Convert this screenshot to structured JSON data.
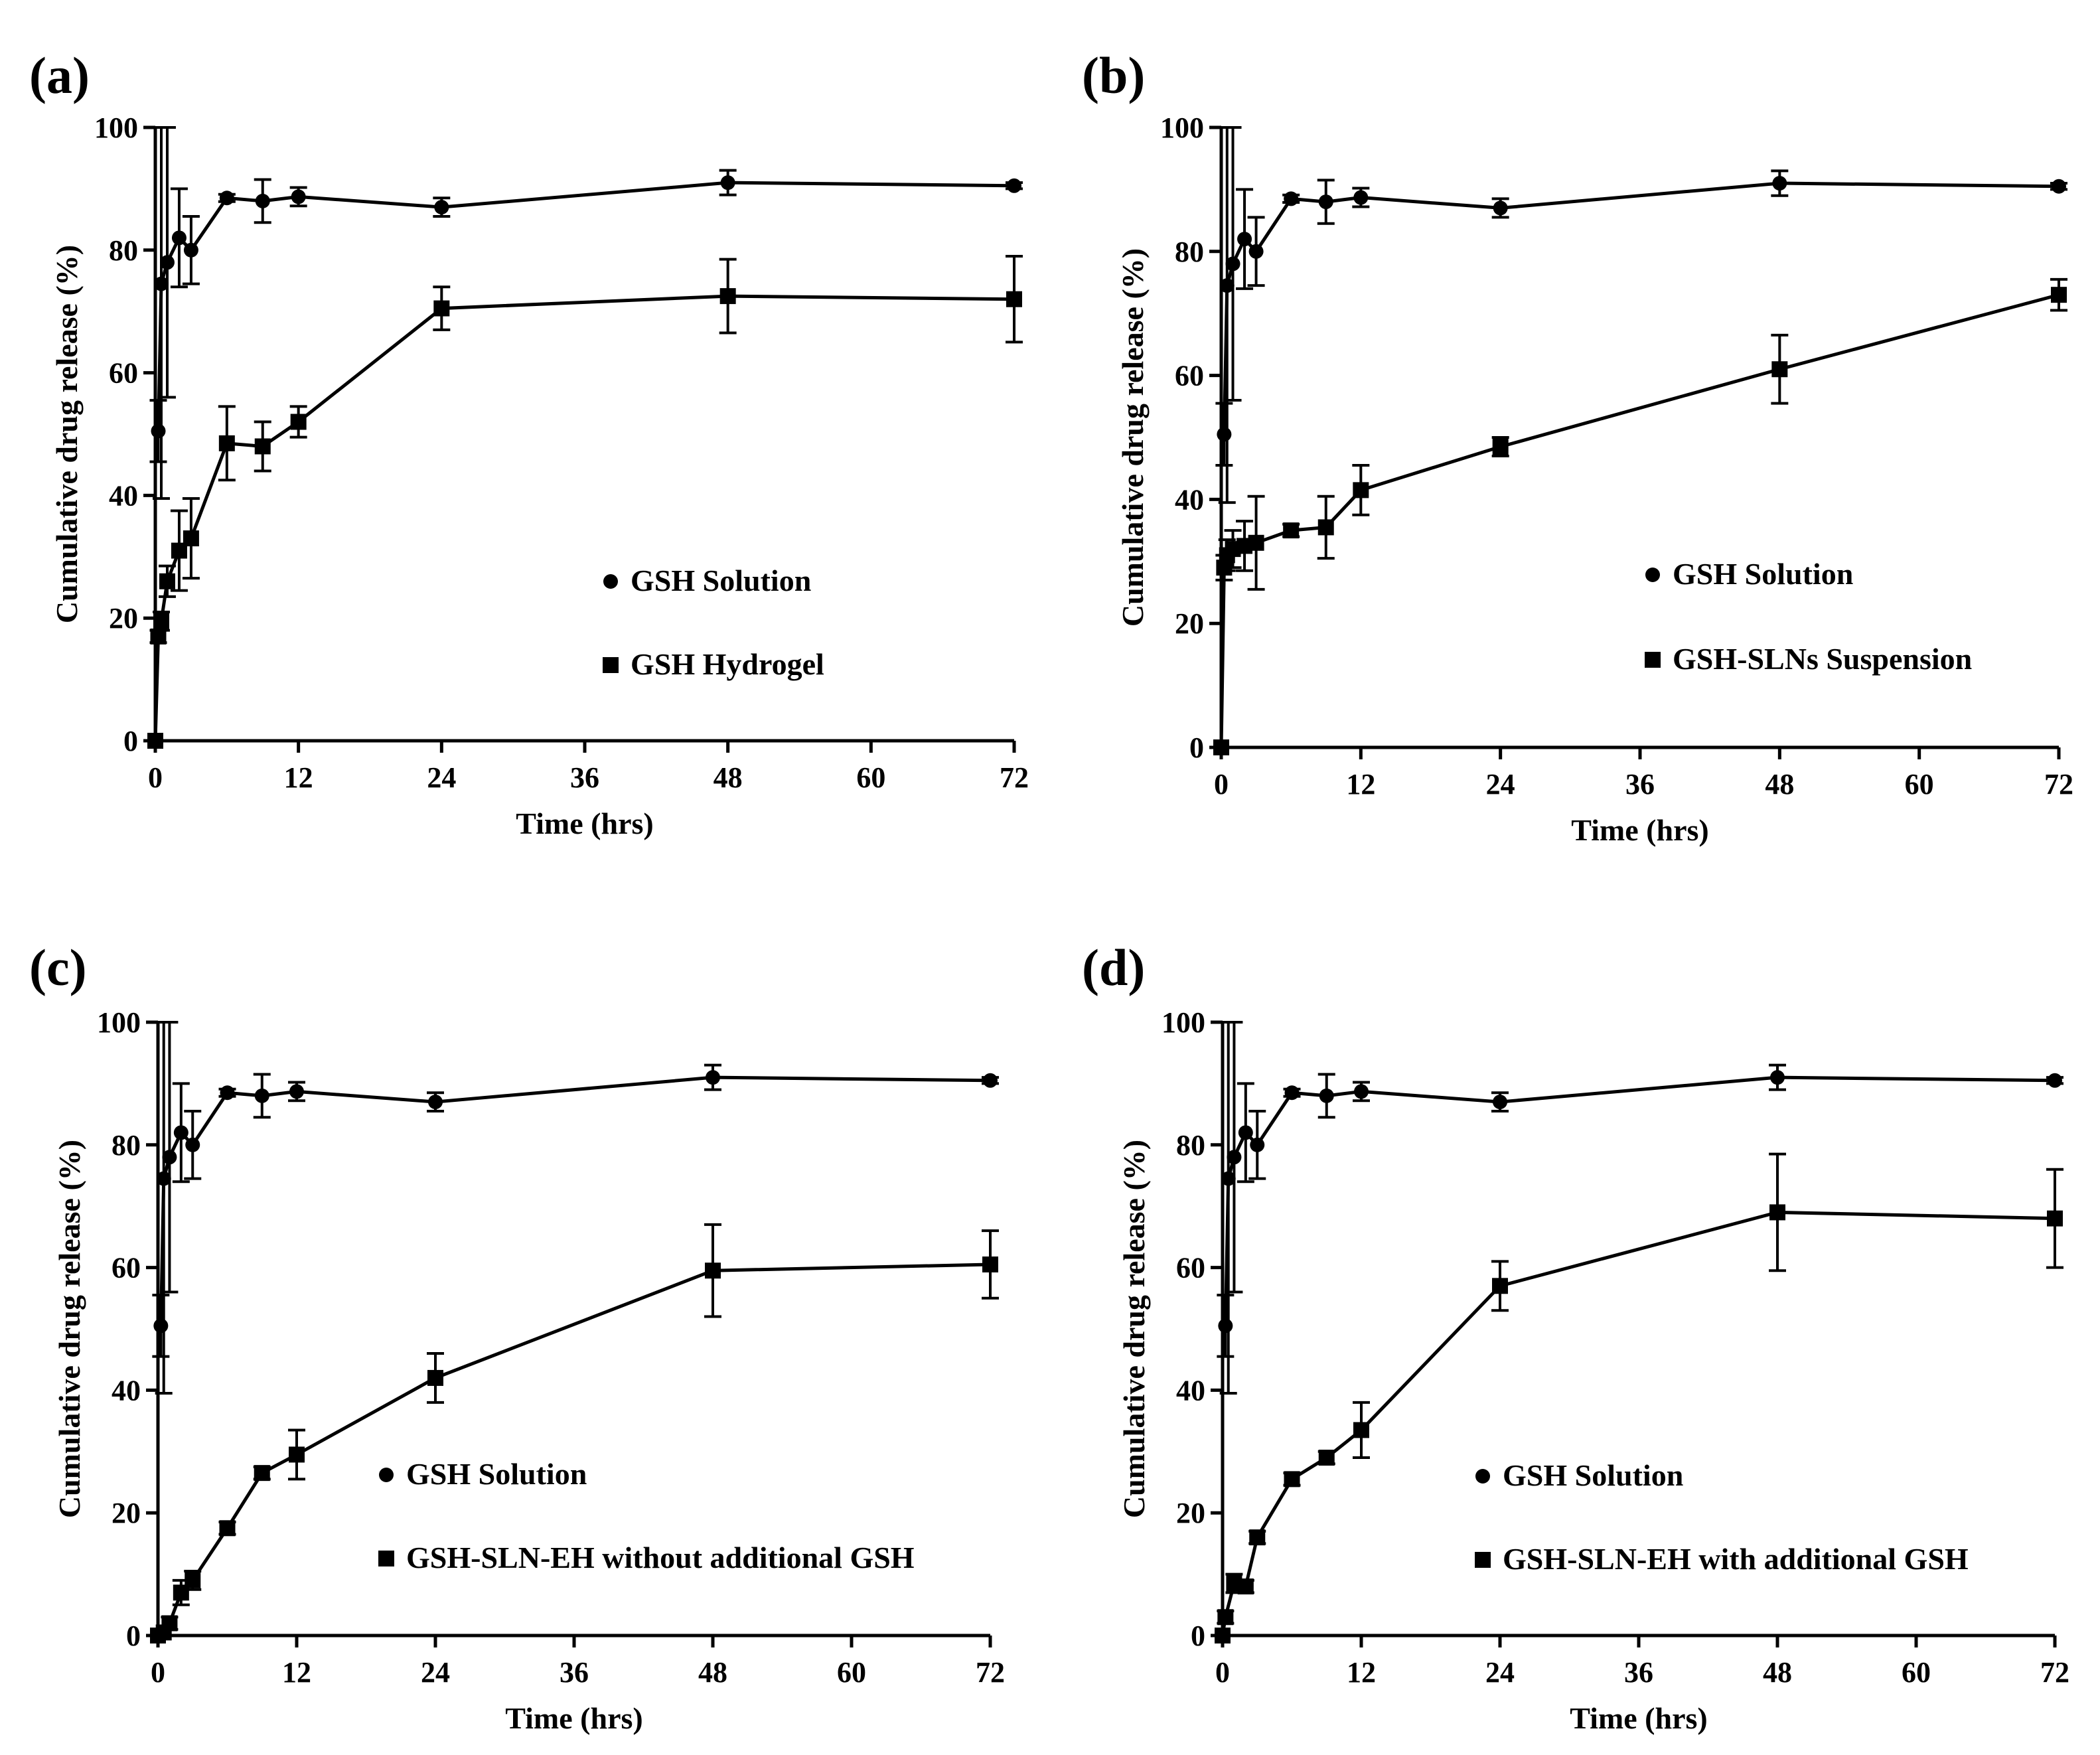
{
  "chart_data": [
    {
      "panel_label": "(a)",
      "type": "line",
      "xlabel": "Time (hrs)",
      "ylabel": "Cumulative drug release (%)",
      "xlim": [
        0,
        72
      ],
      "ylim": [
        0,
        100
      ],
      "xticks": [
        0,
        12,
        24,
        36,
        48,
        60,
        72
      ],
      "yticks": [
        0,
        20,
        40,
        60,
        80,
        100
      ],
      "grid": false,
      "legend_position": "center-right",
      "series": [
        {
          "name": "GSH Solution",
          "marker": "circle",
          "x": [
            0.25,
            0.5,
            1,
            2,
            3,
            6,
            9,
            12,
            24,
            48,
            72
          ],
          "y": [
            50.5,
            74.5,
            78,
            82,
            80,
            88.5,
            88,
            88.7,
            87,
            91,
            90.5
          ],
          "error": [
            5,
            35,
            22,
            8,
            5.5,
            0.6,
            3.5,
            1.5,
            1.5,
            2,
            0.5
          ]
        },
        {
          "name": "GSH Hydrogel",
          "marker": "square",
          "x": [
            0,
            0.25,
            0.5,
            1,
            2,
            3,
            6,
            9,
            12,
            24,
            48,
            72
          ],
          "y": [
            0,
            17,
            19.5,
            26,
            31,
            33,
            48.5,
            48,
            52,
            70.5,
            72.5,
            72
          ],
          "error": [
            0,
            1,
            1.5,
            2.5,
            6.5,
            6.5,
            6,
            4,
            2.5,
            3.5,
            6,
            7
          ]
        }
      ]
    },
    {
      "panel_label": "(b)",
      "type": "line",
      "xlabel": "Time (hrs)",
      "ylabel": "Cumulative drug release (%)",
      "xlim": [
        0,
        72
      ],
      "ylim": [
        0,
        100
      ],
      "xticks": [
        0,
        12,
        24,
        36,
        48,
        60,
        72
      ],
      "yticks": [
        0,
        20,
        40,
        60,
        80,
        100
      ],
      "grid": false,
      "legend_position": "center-right",
      "series": [
        {
          "name": "GSH Solution",
          "marker": "circle",
          "x": [
            0.25,
            0.5,
            1,
            2,
            3,
            6,
            9,
            12,
            24,
            48,
            72
          ],
          "y": [
            50.5,
            74.5,
            78,
            82,
            80,
            88.5,
            88,
            88.7,
            87,
            91,
            90.5
          ],
          "error": [
            5,
            35,
            22,
            8,
            5.5,
            0.6,
            3.5,
            1.5,
            1.5,
            2,
            0.5
          ]
        },
        {
          "name": "GSH-SLNs Suspension",
          "marker": "square",
          "x": [
            0,
            0.25,
            0.5,
            1,
            2,
            3,
            6,
            9,
            12,
            24,
            48,
            72
          ],
          "y": [
            0,
            29,
            31,
            32,
            32.5,
            33,
            35,
            35.5,
            41.5,
            48.5,
            61,
            73
          ],
          "error": [
            0,
            2,
            2.5,
            3,
            4,
            7.5,
            1,
            5,
            4,
            1.5,
            5.5,
            2.5
          ]
        }
      ]
    },
    {
      "panel_label": "(c)",
      "type": "line",
      "xlabel": "Time (hrs)",
      "ylabel": "Cumulative drug release (%)",
      "xlim": [
        0,
        72
      ],
      "ylim": [
        0,
        100
      ],
      "xticks": [
        0,
        12,
        24,
        36,
        48,
        60,
        72
      ],
      "yticks": [
        0,
        20,
        40,
        60,
        80,
        100
      ],
      "grid": false,
      "legend_position": "bottom-center",
      "series": [
        {
          "name": "GSH Solution",
          "marker": "circle",
          "x": [
            0.25,
            0.5,
            1,
            2,
            3,
            6,
            9,
            12,
            24,
            48,
            72
          ],
          "y": [
            50.5,
            74.5,
            78,
            82,
            80,
            88.5,
            88,
            88.7,
            87,
            91,
            90.5
          ],
          "error": [
            5,
            35,
            22,
            8,
            5.5,
            0.6,
            3.5,
            1.5,
            1.5,
            2,
            0.5
          ]
        },
        {
          "name": "GSH-SLN-EH without additional GSH",
          "marker": "square",
          "x": [
            0,
            0.5,
            1,
            2,
            3,
            6,
            9,
            12,
            24,
            48,
            72
          ],
          "y": [
            0,
            0.5,
            2,
            7,
            9,
            17.5,
            26.5,
            29.5,
            42,
            59.5,
            60.5
          ],
          "error": [
            0,
            0.5,
            1,
            2,
            1.5,
            1,
            1,
            4,
            4,
            7.5,
            5.5
          ]
        }
      ]
    },
    {
      "panel_label": "(d)",
      "type": "line",
      "xlabel": "Time (hrs)",
      "ylabel": "Cumulative drug release (%)",
      "xlim": [
        0,
        72
      ],
      "ylim": [
        0,
        100
      ],
      "xticks": [
        0,
        12,
        24,
        36,
        48,
        60,
        72
      ],
      "yticks": [
        0,
        20,
        40,
        60,
        80,
        100
      ],
      "grid": false,
      "legend_position": "bottom-center",
      "series": [
        {
          "name": "GSH Solution",
          "marker": "circle",
          "x": [
            0.25,
            0.5,
            1,
            2,
            3,
            6,
            9,
            12,
            24,
            48,
            72
          ],
          "y": [
            50.5,
            74.5,
            78,
            82,
            80,
            88.5,
            88,
            88.7,
            87,
            91,
            90.5
          ],
          "error": [
            5,
            35,
            22,
            8,
            5.5,
            0.6,
            3.5,
            1.5,
            1.5,
            2,
            0.5
          ]
        },
        {
          "name": "GSH-SLN-EH with additional GSH",
          "marker": "square",
          "x": [
            0,
            0.25,
            1,
            2,
            3,
            6,
            9,
            12,
            24,
            48,
            72
          ],
          "y": [
            0,
            3,
            8.5,
            8,
            16,
            25.5,
            29,
            33.5,
            57,
            69,
            68
          ],
          "error": [
            0,
            1,
            1.5,
            1,
            1,
            1,
            1,
            4.5,
            4,
            9.5,
            8
          ]
        }
      ]
    }
  ]
}
